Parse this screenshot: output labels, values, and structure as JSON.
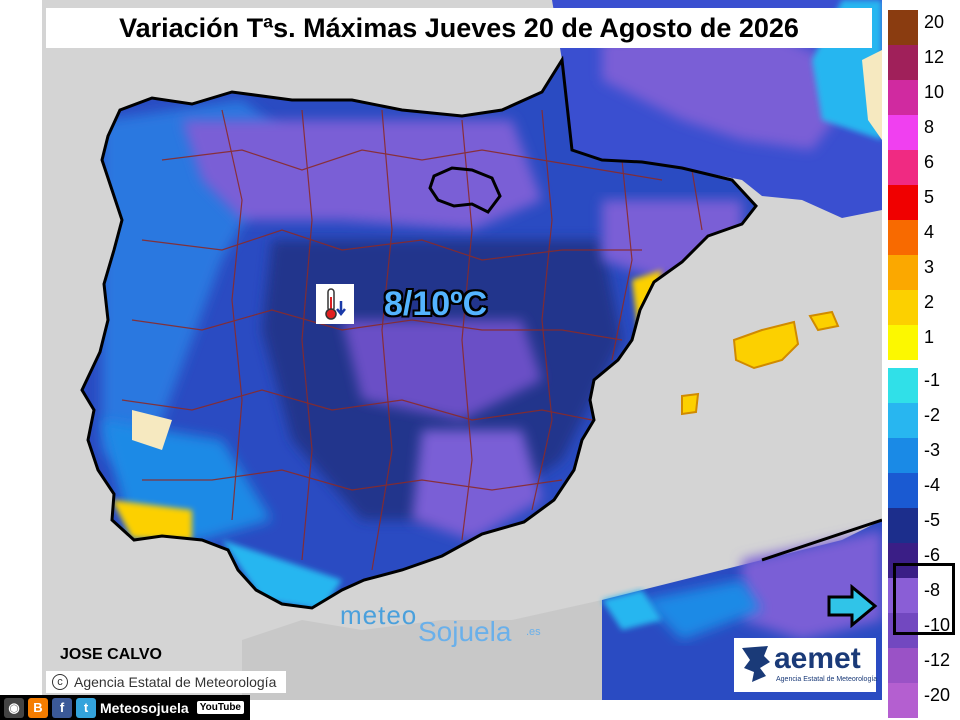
{
  "title": "Variación Tªs. Máximas Jueves 20 de Agosto de 2026",
  "map_label": {
    "value": "8/10ºC",
    "icon": "thermometer-down-icon"
  },
  "legend": [
    {
      "label": "20",
      "color": "#8a3c10"
    },
    {
      "label": "12",
      "color": "#a0205a"
    },
    {
      "label": "10",
      "color": "#d02aa0"
    },
    {
      "label": "8",
      "color": "#f040f0"
    },
    {
      "label": "6",
      "color": "#f02a82"
    },
    {
      "label": "5",
      "color": "#f00000"
    },
    {
      "label": "4",
      "color": "#f86a00"
    },
    {
      "label": "3",
      "color": "#fba800"
    },
    {
      "label": "2",
      "color": "#fcd000"
    },
    {
      "label": "1",
      "color": "#fcf800"
    },
    {
      "label": "-1",
      "color": "#30e0e8"
    },
    {
      "label": "-2",
      "color": "#28b6f0"
    },
    {
      "label": "-3",
      "color": "#1a8ae6"
    },
    {
      "label": "-4",
      "color": "#1a5ad2"
    },
    {
      "label": "-5",
      "color": "#1c2e8c"
    },
    {
      "label": "-6",
      "color": "#3a1e86"
    },
    {
      "label": "-8",
      "color": "#8a5ed6"
    },
    {
      "label": "-10",
      "color": "#7248c0"
    },
    {
      "label": "-12",
      "color": "#9a52c6"
    },
    {
      "label": "-20",
      "color": "#b45fd0"
    }
  ],
  "author": "JOSE CALVO",
  "agency": "Agencia Estatal de Meteorología",
  "agency_copyright": "c",
  "watermark": {
    "part1": "meteo",
    "part2": "Sojuela",
    "suffix": ".es"
  },
  "aemet": {
    "name": "aemet",
    "subtitle": "Agencia Estatal de Meteorología"
  },
  "social": {
    "label": "Meteosojuela",
    "youtube": "YouTube"
  }
}
